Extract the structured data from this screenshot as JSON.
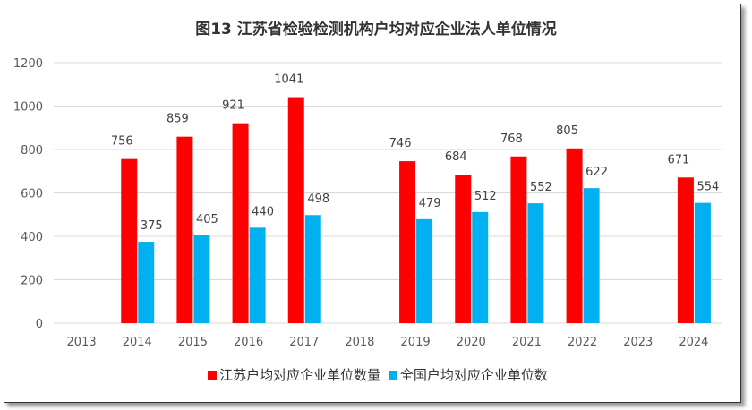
{
  "chart_data": {
    "type": "bar",
    "title": "图13  江苏省检验检测机构户均对应企业法人单位情况",
    "categories": [
      "2013",
      "2014",
      "2015",
      "2016",
      "2017",
      "2018",
      "2019",
      "2020",
      "2021",
      "2022",
      "2023",
      "2024"
    ],
    "series": [
      {
        "name": "江苏户均对应企业单位数量",
        "color": "#ff0000",
        "values": [
          null,
          756,
          859,
          921,
          1041,
          null,
          746,
          684,
          768,
          805,
          null,
          671
        ]
      },
      {
        "name": "全国户均对应企业单位数",
        "color": "#00b0f0",
        "values": [
          null,
          375,
          405,
          440,
          498,
          null,
          479,
          512,
          552,
          622,
          null,
          554
        ]
      }
    ],
    "ylim": [
      0,
      1200
    ],
    "yticks": [
      0,
      200,
      400,
      600,
      800,
      1000,
      1200
    ],
    "grid": true,
    "legend": "bottom"
  }
}
